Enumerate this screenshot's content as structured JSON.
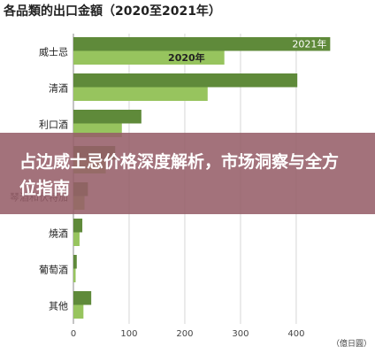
{
  "chart_data": {
    "type": "bar",
    "title": "各品類的出口金額（2020至2021年）",
    "categories": [
      "威士忌",
      "清酒",
      "利口酒",
      "",
      "琴酒和伏特加",
      "燒酒",
      "葡萄酒",
      "其他"
    ],
    "series": [
      {
        "name": "2021年",
        "values": [
          461,
          402,
          122,
          75,
          26,
          16,
          6,
          32
        ]
      },
      {
        "name": "2020年",
        "values": [
          271,
          241,
          87,
          58,
          20,
          11,
          4,
          18
        ]
      }
    ],
    "xticks": [
      0,
      100,
      200,
      300,
      400
    ],
    "xlim": [
      0,
      470
    ],
    "xunit": "（億日圓）",
    "colors": {
      "2021年": "#5f8a3a",
      "2020年": "#97c45e"
    }
  },
  "overlay": {
    "headline": "占边威士忌价格深度解析，市场洞察与全方位指南"
  }
}
